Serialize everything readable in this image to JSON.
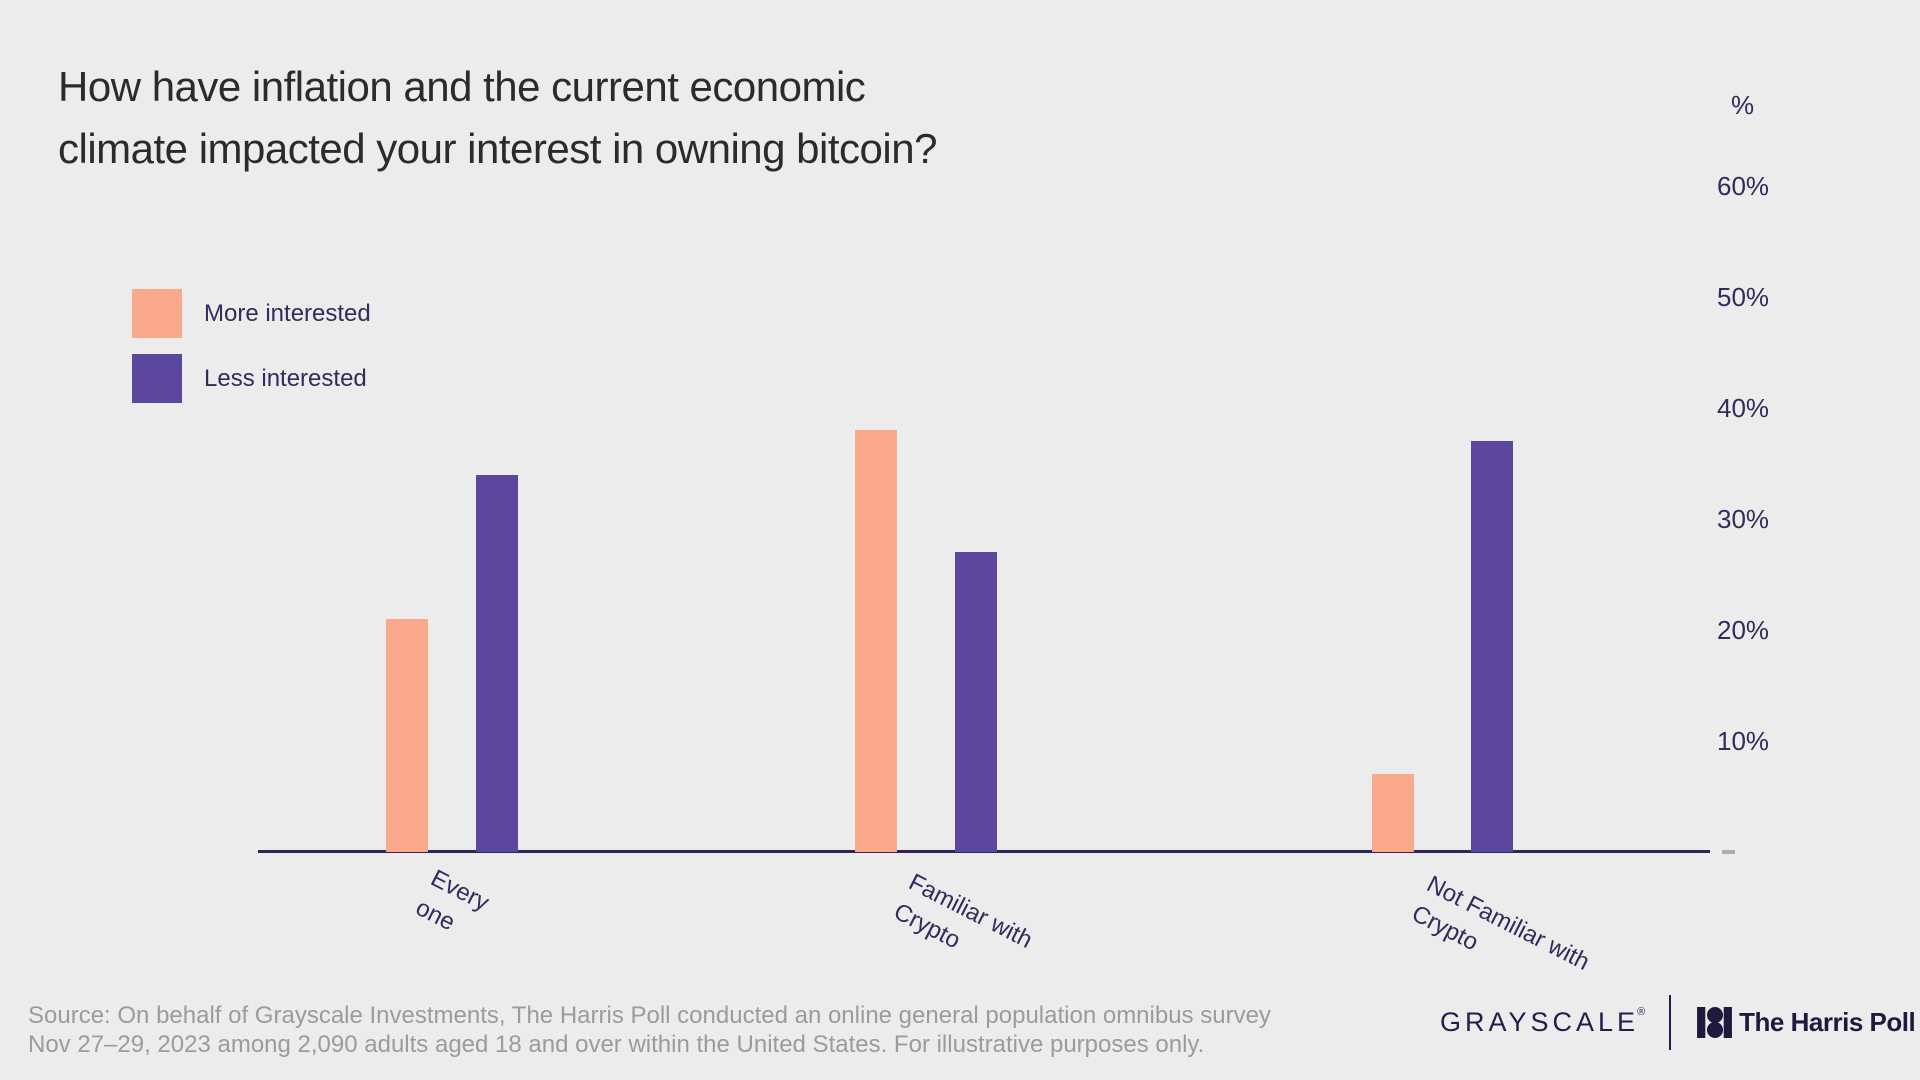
{
  "title": "How have inflation and the current economic\nclimate impacted your interest in owning bitcoin?",
  "chart_data": {
    "type": "bar",
    "title": "How have inflation and the current economic climate impacted your interest in owning bitcoin?",
    "categories": [
      "Every\none",
      "Familiar with\nCrypto",
      "Not Familiar with\nCrypto"
    ],
    "series": [
      {
        "name": "More interested",
        "color": "#FBA98C",
        "values": [
          21,
          38,
          7
        ]
      },
      {
        "name": "Less interested",
        "color": "#5C479E",
        "values": [
          34,
          27,
          37
        ]
      }
    ],
    "unit_label": "%",
    "y_tick_values": [
      60,
      50,
      40,
      30,
      20,
      10
    ],
    "y_tick_labels": [
      "60%",
      "50%",
      "40%",
      "30%",
      "20%",
      "10%"
    ],
    "ylim": [
      0,
      65
    ],
    "grid": false,
    "legend_position": "top-left",
    "xlabel": "",
    "ylabel": "%"
  },
  "footer": {
    "source": "Source: On behalf of Grayscale Investments, The Harris Poll conducted an online general population omnibus survey\nNov 27–29, 2023 among 2,090 adults aged 18 and over within the United States. For illustrative purposes only."
  },
  "brand": {
    "grayscale_wordmark": "GRAYSCALE",
    "registered_mark": "®",
    "harris_poll": "The Harris Poll"
  },
  "colors": {
    "background": "#EDECED",
    "more_interested": "#FBA98C",
    "less_interested": "#5C479E",
    "axis": "#2E2457",
    "tick_text": "#332A5E",
    "title_text": "#2B2B2B",
    "footer_text": "#9B9B9B",
    "brand_navy": "#241D49"
  }
}
